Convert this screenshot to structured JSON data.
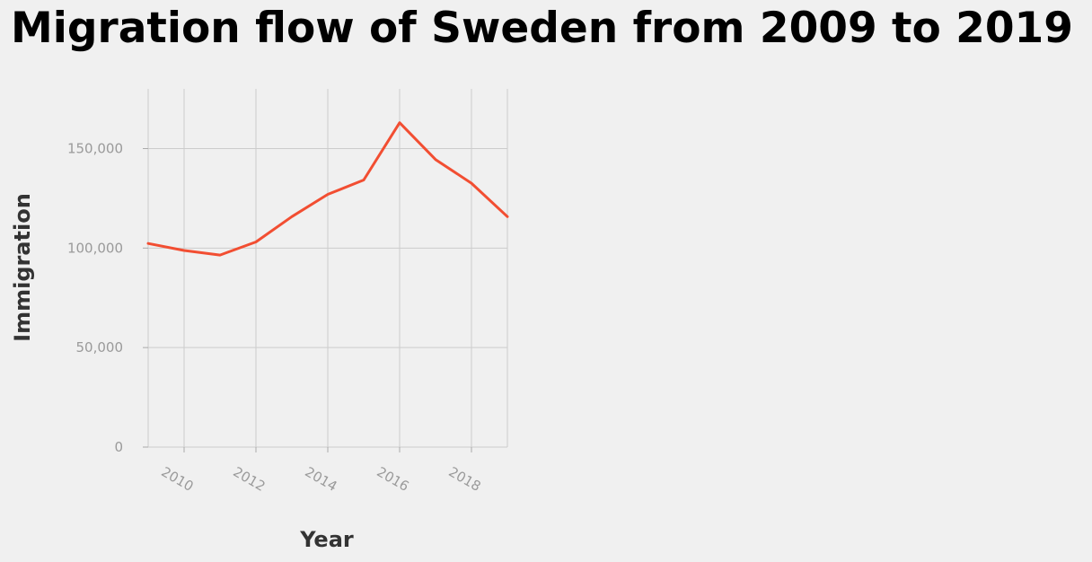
{
  "chart_data": {
    "type": "line",
    "title": "Migration flow of Sweden from 2009 to 2019",
    "xlabel": "Year",
    "ylabel": "Immigration",
    "x": [
      2009,
      2010,
      2011,
      2012,
      2013,
      2014,
      2015,
      2016,
      2017,
      2018,
      2019
    ],
    "xlim": [
      2009,
      2019
    ],
    "ylim": [
      0,
      180000
    ],
    "x_ticks": [
      2010,
      2012,
      2014,
      2016,
      2018
    ],
    "x_tick_labels": [
      "2010",
      "2012",
      "2014",
      "2016",
      "2018"
    ],
    "y_ticks": [
      0,
      50000,
      100000,
      150000
    ],
    "y_tick_labels": [
      "0",
      "50,000",
      "100,000",
      "150,000"
    ],
    "grid": true,
    "series": [
      {
        "values": [
          102300,
          98800,
          96500,
          103100,
          115800,
          127000,
          134200,
          163000,
          144500,
          132600,
          115800
        ],
        "color": "#f24e32"
      }
    ]
  }
}
